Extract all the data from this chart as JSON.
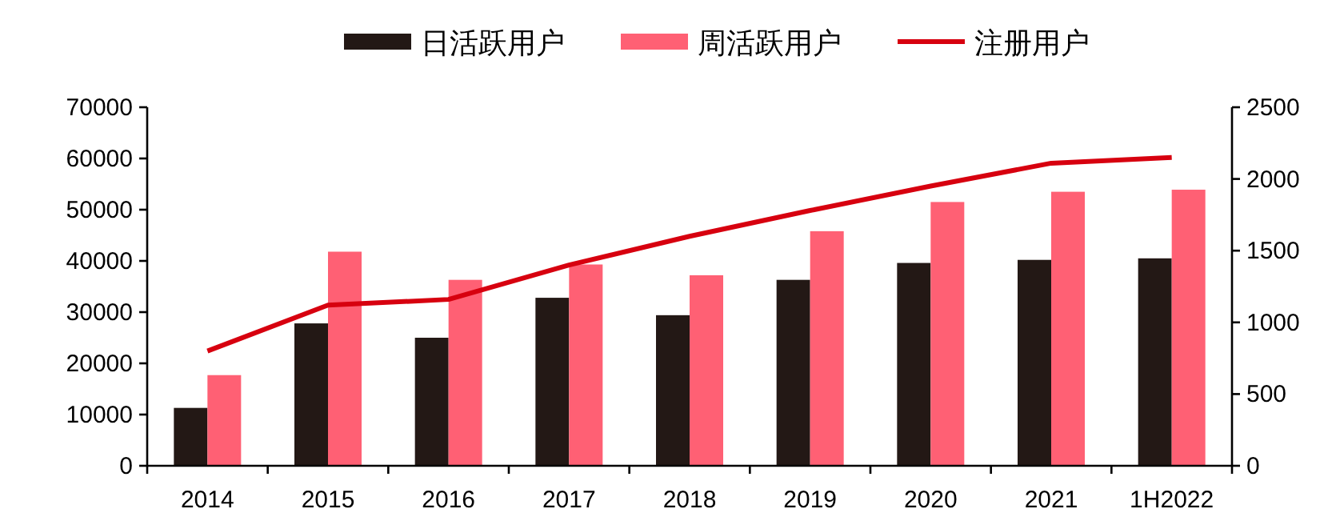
{
  "chart_data": {
    "type": "bar",
    "categories": [
      "2014",
      "2015",
      "2016",
      "2017",
      "2018",
      "2019",
      "2020",
      "2021",
      "1H2022"
    ],
    "series": [
      {
        "name": "日活跃用户",
        "color": "#231815",
        "values": [
          11300,
          27800,
          25000,
          32800,
          29400,
          36300,
          39600,
          40200,
          40500
        ]
      },
      {
        "name": "周活跃用户",
        "color": "#ff6074",
        "values": [
          17700,
          41800,
          36300,
          39300,
          37200,
          45800,
          51500,
          53500,
          53900
        ]
      },
      {
        "name": "注册用户",
        "type": "line",
        "axis": "y2",
        "color": "#d7000f",
        "values": [
          800,
          1120,
          1160,
          1400,
          1600,
          1780,
          1950,
          2110,
          2150
        ]
      }
    ],
    "ylim": [
      0,
      70000
    ],
    "yticks": [
      0,
      10000,
      20000,
      30000,
      40000,
      50000,
      60000,
      70000
    ],
    "y2lim": [
      0,
      2500
    ],
    "y2ticks": [
      0,
      500,
      1000,
      1500,
      2000,
      2500
    ],
    "legend": "top",
    "grid": false
  }
}
